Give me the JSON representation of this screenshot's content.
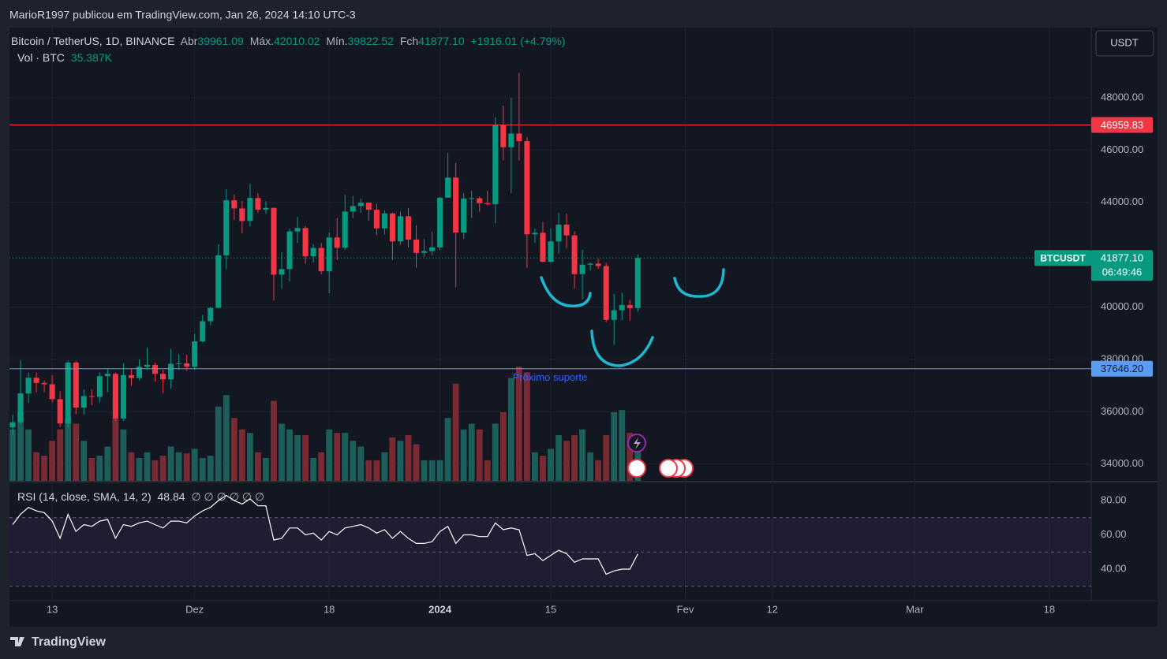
{
  "chart_data": {
    "type": "candlestick",
    "publisher": "MarioR1997 publicou em TradingView.com, Jan 26, 2024 14:10 UTC-3",
    "symbol": "Bitcoin / TetherUS, 1D, BINANCE",
    "ohlc_legend": [
      {
        "label": "Abr",
        "value": "39961.09"
      },
      {
        "label": "Máx.",
        "value": "42010.02"
      },
      {
        "label": "Mín.",
        "value": "39822.52"
      },
      {
        "label": "Fch",
        "value": "41877.10"
      }
    ],
    "change": "+1916.01 (+4.79%)",
    "volume_legend": {
      "label": "Vol · BTC",
      "value": "35.387K"
    },
    "rsi_legend": {
      "label": "RSI (14, close, SMA, 14, 2)",
      "value": "48.84",
      "extras": "∅ ∅ ∅ ∅ ∅ ∅"
    },
    "currency": "USDT",
    "brand": "TradingView",
    "annotation": "Próximo suporte",
    "up_color": "#089981",
    "down_color": "#f23645",
    "volume_up_color": "#1c5e59",
    "volume_down_color": "#7a2a32",
    "rsi_color": "#ffffff",
    "grid": true,
    "open": [
      35400,
      35600,
      36700,
      37300,
      37100,
      37050,
      36480,
      35550,
      37880,
      36160,
      36600,
      36570,
      37360,
      37450,
      35740,
      37400,
      37290,
      37720,
      37790,
      37450,
      37240,
      37830,
      37850,
      37720,
      38690,
      39460,
      39970,
      41980,
      44080,
      43770,
      43290,
      44170,
      43720,
      43790,
      41240,
      41450,
      42890,
      43020,
      41940,
      42260,
      41370,
      42660,
      42270,
      43650,
      43860,
      43990,
      43720,
      43010,
      43580,
      42510,
      43470,
      42580,
      42070,
      42140,
      42280,
      44180,
      44950,
      42850,
      44150,
      44160,
      43970,
      43930,
      46970,
      46110,
      46630,
      46340,
      42780,
      42840,
      41730,
      42510,
      43150,
      42740,
      41260,
      41620,
      41660,
      41570,
      39510,
      39880,
      40080,
      39961.09
    ],
    "high": [
      35900,
      37970,
      37500,
      37500,
      37200,
      37400,
      36780,
      37950,
      37950,
      36850,
      36850,
      37500,
      37650,
      37500,
      37860,
      37650,
      38000,
      38450,
      37880,
      37600,
      38400,
      38200,
      38180,
      38980,
      39700,
      40000,
      42400,
      44500,
      44300,
      44050,
      44700,
      44350,
      44050,
      43800,
      42100,
      43000,
      43450,
      43100,
      42400,
      42450,
      42850,
      43400,
      44280,
      44250,
      44150,
      44000,
      43950,
      43700,
      43600,
      43650,
      43780,
      43130,
      42600,
      42890,
      44200,
      45900,
      45500,
      44350,
      44450,
      44220,
      44450,
      47250,
      47700,
      48000,
      48950,
      46500,
      43000,
      43250,
      43000,
      43600,
      43570,
      42900,
      42200,
      41700,
      41850,
      41690,
      40500,
      40550,
      40280,
      42010.02
    ],
    "low": [
      35100,
      35550,
      36340,
      36750,
      36750,
      36350,
      35400,
      35380,
      35900,
      35880,
      36250,
      36350,
      36750,
      35650,
      35650,
      37000,
      37200,
      37600,
      37150,
      36700,
      36880,
      37600,
      37560,
      37600,
      38650,
      39300,
      39950,
      41450,
      43330,
      42820,
      43080,
      43600,
      43560,
      40240,
      40700,
      40980,
      42450,
      41650,
      41720,
      41250,
      40530,
      41800,
      42180,
      43400,
      43600,
      43300,
      42750,
      42770,
      41800,
      42380,
      42280,
      41500,
      41900,
      41980,
      42180,
      44180,
      40750,
      42600,
      43400,
      43650,
      43880,
      43200,
      45600,
      44350,
      45600,
      41500,
      42450,
      41720,
      41700,
      42050,
      42250,
      40700,
      40300,
      41400,
      41460,
      39430,
      38550,
      39500,
      39480,
      39822.52
    ],
    "close": [
      35600,
      36700,
      37300,
      37100,
      37050,
      36480,
      35550,
      37880,
      36160,
      36600,
      36570,
      37360,
      37450,
      35740,
      37400,
      37290,
      37720,
      37790,
      37450,
      37240,
      37830,
      37850,
      37720,
      38690,
      39460,
      39970,
      41980,
      44080,
      43770,
      43290,
      44170,
      43720,
      43790,
      41240,
      41450,
      42890,
      43020,
      41940,
      42260,
      41370,
      42660,
      42270,
      43650,
      43860,
      43990,
      43720,
      43010,
      43580,
      42510,
      43470,
      42580,
      42070,
      42140,
      42280,
      44180,
      44950,
      42850,
      44150,
      44160,
      43970,
      43930,
      46970,
      46110,
      46630,
      46340,
      42780,
      42840,
      41730,
      42510,
      43150,
      42740,
      41260,
      41620,
      41660,
      41570,
      39510,
      39880,
      40080,
      39960,
      41877.1
    ],
    "volume": [
      45000,
      60000,
      45000,
      25000,
      22000,
      35000,
      45000,
      55000,
      50000,
      35000,
      20000,
      22000,
      30000,
      55000,
      45000,
      25000,
      20000,
      25000,
      18000,
      22000,
      30000,
      25000,
      24000,
      28000,
      20000,
      22000,
      65000,
      75000,
      55000,
      45000,
      42000,
      25000,
      20000,
      70000,
      50000,
      45000,
      40000,
      40000,
      20000,
      25000,
      45000,
      42000,
      42000,
      35000,
      30000,
      18000,
      18000,
      25000,
      38000,
      35000,
      40000,
      32000,
      18000,
      18000,
      18000,
      55000,
      85000,
      45000,
      50000,
      45000,
      18000,
      50000,
      60000,
      90000,
      100000,
      95000,
      25000,
      22000,
      28000,
      40000,
      35000,
      40000,
      45000,
      25000,
      18000,
      40000,
      60000,
      62000,
      42000,
      35387
    ],
    "rsi": [
      66,
      72,
      76,
      74,
      73,
      68,
      58,
      72,
      62,
      66,
      65,
      68,
      69,
      58,
      66,
      65,
      67,
      68,
      66,
      64,
      68,
      68,
      67,
      71,
      74,
      76,
      80,
      83,
      80,
      78,
      81,
      77,
      77,
      57,
      58,
      64,
      64,
      60,
      61,
      57,
      62,
      60,
      64,
      65,
      66,
      64,
      61,
      63,
      58,
      62,
      58,
      55,
      55,
      56,
      62,
      65,
      55,
      60,
      60,
      59,
      59,
      67,
      63,
      64,
      63,
      48,
      49,
      45,
      48,
      51,
      49,
      44,
      46,
      46,
      46,
      37,
      39,
      40,
      40,
      48.84
    ],
    "xlim": [
      -0.4,
      136.3
    ],
    "xticks": [
      {
        "value": 5,
        "label": "13"
      },
      {
        "value": 23,
        "label": "Dez"
      },
      {
        "value": 40,
        "label": "18"
      },
      {
        "value": 54,
        "label": "2024"
      },
      {
        "value": 68,
        "label": "15"
      },
      {
        "value": 85,
        "label": "Fev"
      },
      {
        "value": 96,
        "label": "12"
      },
      {
        "value": 114,
        "label": "Mar"
      },
      {
        "value": 131,
        "label": "18"
      }
    ],
    "ylim": [
      33360,
      50680
    ],
    "yticks": [
      {
        "value": 34000,
        "label": "34000.00"
      },
      {
        "value": 36000,
        "label": "36000.00"
      },
      {
        "value": 38000,
        "label": "38000.00"
      },
      {
        "value": 40000,
        "label": "40000.00"
      },
      {
        "value": 44000,
        "label": "44000.00"
      },
      {
        "value": 46000,
        "label": "46000.00"
      },
      {
        "value": 48000,
        "label": "48000.00"
      }
    ],
    "rsi_ylim": [
      21.6,
      90.6
    ],
    "rsi_yticks": [
      {
        "value": 40,
        "label": "40.00"
      },
      {
        "value": 60,
        "label": "60.00"
      },
      {
        "value": 80,
        "label": "80.00"
      }
    ],
    "rsi_levels": [
      30,
      50,
      70
    ],
    "levels": [
      {
        "value": 46959.83,
        "label": "46959.83",
        "color": "#f23645"
      },
      {
        "value": 37646.2,
        "label": "37646.20",
        "color": "#5b9cf6"
      }
    ],
    "last_price": {
      "symbol": "BTCUSDT",
      "label": "41877.10",
      "countdown": "06:49:46"
    }
  }
}
